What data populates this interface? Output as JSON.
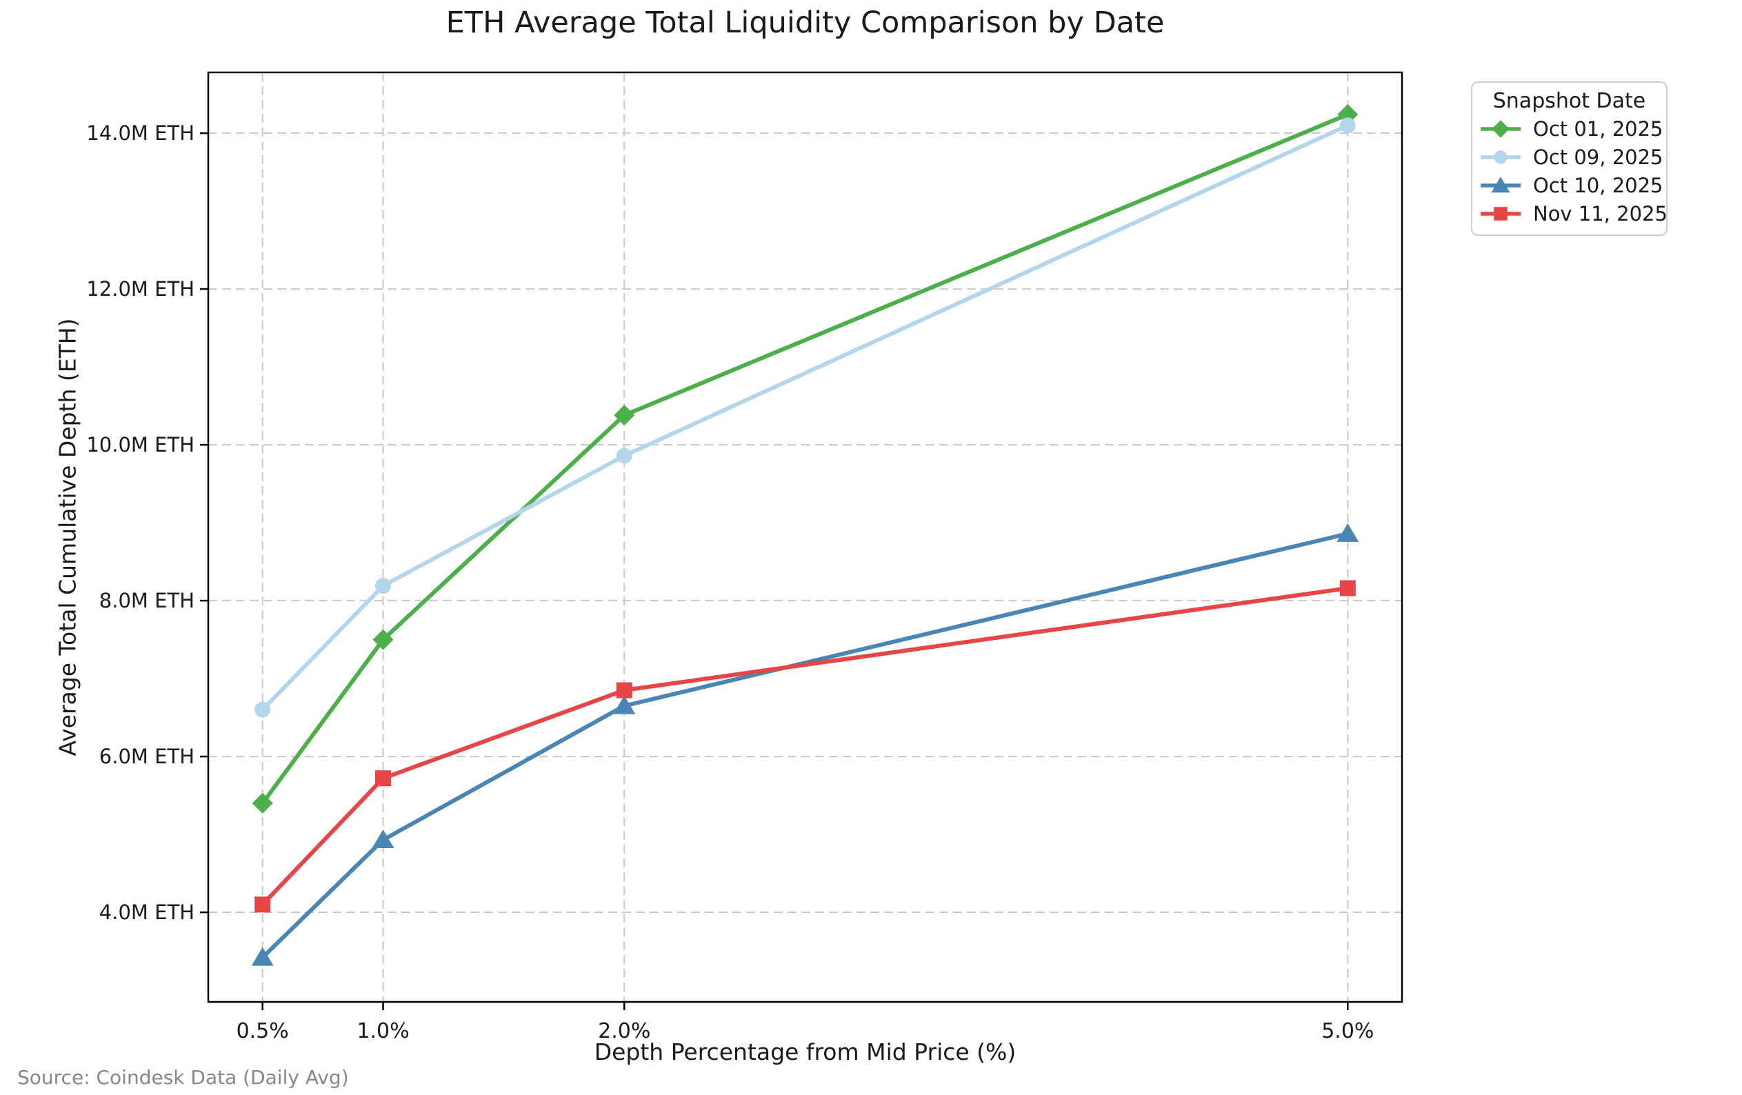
{
  "figure": {
    "source_note": "Source: Coindesk Data (Daily Avg)"
  },
  "chart_data": {
    "type": "line",
    "title": "ETH Average Total Liquidity Comparison by Date",
    "xlabel": "Depth Percentage from Mid Price (%)",
    "ylabel": "Average Total Cumulative Depth (ETH)",
    "legend_title": "Snapshot Date",
    "legend_position": "outside upper right",
    "grid": true,
    "grid_style": "dashed",
    "y_unit": "million ETH",
    "x": [
      0.5,
      1.0,
      2.0,
      5.0
    ],
    "x_tick_labels": [
      "0.5%",
      "1.0%",
      "2.0%",
      "5.0%"
    ],
    "y_ticks": [
      4,
      6,
      8,
      10,
      12,
      14
    ],
    "y_tick_labels": [
      "4.0M ETH",
      "6.0M ETH",
      "8.0M ETH",
      "10.0M ETH",
      "12.0M ETH",
      "14.0M ETH"
    ],
    "xlim": [
      0.275,
      5.225
    ],
    "ylim": [
      2.85,
      14.78
    ],
    "series": [
      {
        "name": "Oct 01, 2025",
        "marker": "diamond",
        "color": "#4daf4a",
        "values": [
          5.4,
          7.5,
          10.38,
          14.24
        ]
      },
      {
        "name": "Oct 09, 2025",
        "marker": "circle",
        "color": "#b5d6ea",
        "values": [
          6.6,
          8.19,
          9.86,
          14.1
        ]
      },
      {
        "name": "Oct 10, 2025",
        "marker": "triangle-up",
        "color": "#4a86b4",
        "values": [
          3.42,
          4.93,
          6.65,
          8.86
        ]
      },
      {
        "name": "Nov 11, 2025",
        "marker": "square",
        "color": "#e64646",
        "values": [
          4.1,
          5.72,
          6.85,
          8.16
        ]
      }
    ]
  }
}
